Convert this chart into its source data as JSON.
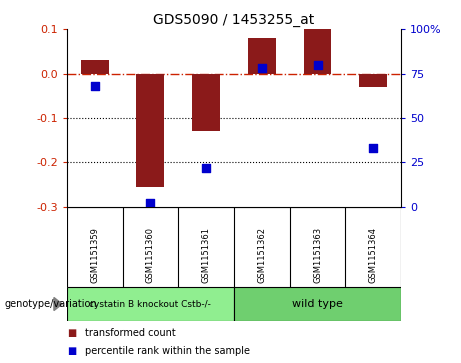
{
  "title": "GDS5090 / 1453255_at",
  "samples": [
    "GSM1151359",
    "GSM1151360",
    "GSM1151361",
    "GSM1151362",
    "GSM1151363",
    "GSM1151364"
  ],
  "transformed_counts": [
    0.03,
    -0.255,
    -0.13,
    0.08,
    0.1,
    -0.03
  ],
  "percentile_ranks": [
    68,
    2,
    22,
    78,
    80,
    33
  ],
  "groups": [
    {
      "label": "cystatin B knockout Cstb-/-",
      "color": "#90EE90",
      "indices": [
        0,
        1,
        2
      ]
    },
    {
      "label": "wild type",
      "color": "#6FCF6F",
      "indices": [
        3,
        4,
        5
      ]
    }
  ],
  "group_label": "genotype/variation",
  "ylim_left": [
    -0.3,
    0.1
  ],
  "ylim_right": [
    0,
    100
  ],
  "yticks_left": [
    -0.3,
    -0.2,
    -0.1,
    0.0,
    0.1
  ],
  "yticks_right": [
    0,
    25,
    50,
    75,
    100
  ],
  "bar_color": "#8B1A1A",
  "dot_color": "#0000CD",
  "bar_width": 0.5,
  "dot_size": 35,
  "hline_y": 0.0,
  "dotted_lines": [
    -0.1,
    -0.2
  ],
  "background_color": "#ffffff",
  "plot_bg_color": "#ffffff",
  "left_label_color": "#CC2200",
  "right_label_color": "#0000CD",
  "legend_bar": "transformed count",
  "legend_dot": "percentile rank within the sample"
}
